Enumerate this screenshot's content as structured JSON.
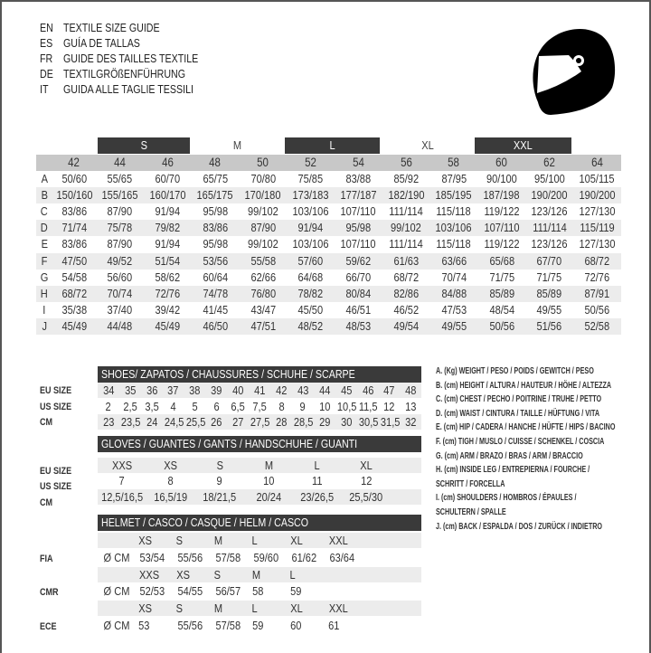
{
  "titles": [
    {
      "code": "EN",
      "text": "TEXTILE SIZE GUIDE"
    },
    {
      "code": "ES",
      "text": "GUÍA DE TALLAS"
    },
    {
      "code": "FR",
      "text": "GUIDE DES TAILLES TEXTILE"
    },
    {
      "code": "DE",
      "text": "TEXTILGRÖßENFÜHRUNG"
    },
    {
      "code": "IT",
      "text": "GUIDA ALLE TAGLIE TESSILI"
    }
  ],
  "logo_icon": "racing-helmet-icon",
  "textile": {
    "size_groups": [
      "S",
      "M",
      "L",
      "XL",
      "XXL"
    ],
    "eu_sizes": [
      "42",
      "44",
      "46",
      "48",
      "50",
      "52",
      "54",
      "56",
      "58",
      "60",
      "62",
      "64"
    ],
    "rows": [
      {
        "letter": "A",
        "values": [
          "50/60",
          "55/65",
          "60/70",
          "65/75",
          "70/80",
          "75/85",
          "83/88",
          "85/92",
          "87/95",
          "90/100",
          "95/100",
          "105/115"
        ]
      },
      {
        "letter": "B",
        "values": [
          "150/160",
          "155/165",
          "160/170",
          "165/175",
          "170/180",
          "173/183",
          "177/187",
          "182/190",
          "185/195",
          "187/198",
          "190/200",
          "190/200"
        ]
      },
      {
        "letter": "C",
        "values": [
          "83/86",
          "87/90",
          "91/94",
          "95/98",
          "99/102",
          "103/106",
          "107/110",
          "111/114",
          "115/118",
          "119/122",
          "123/126",
          "127/130"
        ]
      },
      {
        "letter": "D",
        "values": [
          "71/74",
          "75/78",
          "79/82",
          "83/86",
          "87/90",
          "91/94",
          "95/98",
          "99/102",
          "103/106",
          "107/110",
          "111/114",
          "115/119"
        ]
      },
      {
        "letter": "E",
        "values": [
          "83/86",
          "87/90",
          "91/94",
          "95/98",
          "99/102",
          "103/106",
          "107/110",
          "111/114",
          "115/118",
          "119/122",
          "123/126",
          "127/130"
        ]
      },
      {
        "letter": "F",
        "values": [
          "47/50",
          "49/52",
          "51/54",
          "53/56",
          "55/58",
          "57/60",
          "59/62",
          "61/63",
          "63/66",
          "65/68",
          "67/70",
          "68/72"
        ]
      },
      {
        "letter": "G",
        "values": [
          "54/58",
          "56/60",
          "58/62",
          "60/64",
          "62/66",
          "64/68",
          "66/70",
          "68/72",
          "70/74",
          "71/75",
          "71/75",
          "72/76"
        ]
      },
      {
        "letter": "H",
        "values": [
          "68/72",
          "70/74",
          "72/76",
          "74/78",
          "76/80",
          "78/82",
          "80/84",
          "82/86",
          "84/88",
          "85/89",
          "85/89",
          "87/91"
        ]
      },
      {
        "letter": "I",
        "values": [
          "35/38",
          "37/40",
          "39/42",
          "41/45",
          "43/47",
          "45/50",
          "46/51",
          "46/52",
          "47/53",
          "48/54",
          "49/55",
          "50/56"
        ]
      },
      {
        "letter": "J",
        "values": [
          "45/49",
          "44/48",
          "45/49",
          "46/50",
          "47/51",
          "48/52",
          "48/53",
          "49/54",
          "49/55",
          "50/56",
          "51/56",
          "52/58"
        ]
      }
    ]
  },
  "shoes": {
    "title": "SHOES/ ZAPATOS / CHAUSSURES / SCHUHE / SCARPE",
    "rows": [
      {
        "label": "EU SIZE",
        "values": [
          "34",
          "35",
          "36",
          "37",
          "38",
          "39",
          "40",
          "41",
          "42",
          "43",
          "44",
          "45",
          "46",
          "47",
          "48"
        ]
      },
      {
        "label": "US SIZE",
        "values": [
          "2",
          "2,5",
          "3,5",
          "4",
          "5",
          "6",
          "6,5",
          "7,5",
          "8",
          "9",
          "10",
          "10,5",
          "11,5",
          "12",
          "13"
        ]
      },
      {
        "label": "CM",
        "values": [
          "23",
          "23,5",
          "24",
          "24,5",
          "25,5",
          "26",
          "27",
          "27,5",
          "28",
          "28,5",
          "29",
          "30",
          "30,5",
          "31,5",
          "32"
        ]
      }
    ]
  },
  "gloves": {
    "title": "GLOVES / GUANTES / GANTS / HANDSCHUHE / GUANTI",
    "rows": [
      {
        "label": "EU SIZE",
        "values": [
          "XXS",
          "XS",
          "S",
          "M",
          "L",
          "XL"
        ]
      },
      {
        "label": "US SIZE",
        "values": [
          "7",
          "8",
          "9",
          "10",
          "11",
          "12"
        ]
      },
      {
        "label": "CM",
        "values": [
          "12,5/16,5",
          "16,5/19",
          "18/21,5",
          "20/24",
          "23/26,5",
          "25,5/30"
        ]
      }
    ]
  },
  "helmet": {
    "title": "HELMET / CASCO / CASQUE / HELM / CASCO",
    "unit": "Ø CM",
    "standards": [
      {
        "label": "FIA",
        "sizes": [
          "XS",
          "S",
          "M",
          "L",
          "XL",
          "XXL"
        ],
        "values": [
          "53/54",
          "55/56",
          "57/58",
          "59/60",
          "61/62",
          "63/64"
        ]
      },
      {
        "label": "CMR",
        "sizes": [
          "XXS",
          "XS",
          "S",
          "M",
          "L"
        ],
        "values": [
          "52/53",
          "54/55",
          "56/57",
          "58",
          "59"
        ]
      },
      {
        "label": "ECE",
        "sizes": [
          "XS",
          "S",
          "M",
          "L",
          "XL",
          "XXL"
        ],
        "values": [
          "53",
          "55/56",
          "57/58",
          "59",
          "60",
          "61"
        ]
      }
    ]
  },
  "legend": [
    "A. (Kg) WEIGHT / PESO / POIDS / GEWITCH / PESO",
    "B. (cm) HEIGHT / ALTURA / HAUTEUR / HÖHE / ALTEZZA",
    "C. (cm) CHEST / PECHO / POITRINE / TRUHE / PETTO",
    "D. (cm) WAIST / CINTURA / TAILLE / HÜFTUNG / VITA",
    "E. (cm) HIP / CADERA / HANCHE / HÜFTE / HIPS /  BACINO",
    "F.  (cm) TIGH / MUSLO / CUISSE / SCHENKEL / COSCIA",
    "G. (cm) ARM  / BRAZO / BRAS / ARM / BRACCIO",
    "H. (cm) INSIDE LEG / ENTREPIERNA / FOURCHE /",
    "SCHRITT / FORCELLA",
    "I.  (cm) SHOULDERS / HOMBROS / ÉPAULES /",
    "SCHULTERN / SPALLE",
    "J. (cm) BACK / ESPALDA / DOS / ZURÜCK / INDIETRO"
  ]
}
